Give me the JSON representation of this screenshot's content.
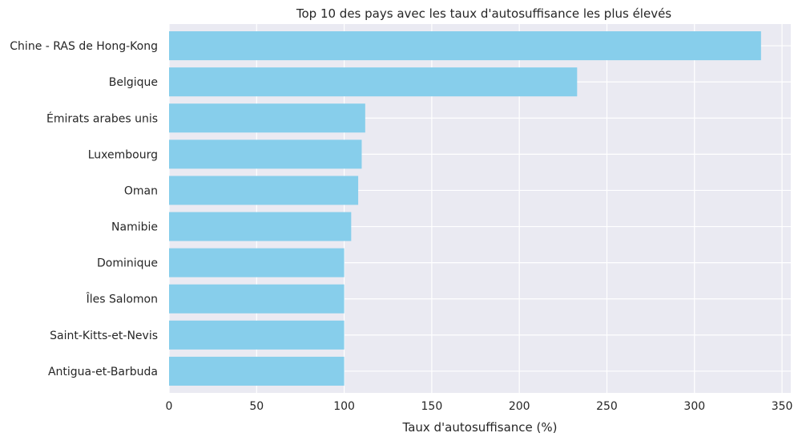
{
  "chart_data": {
    "type": "bar",
    "orientation": "horizontal",
    "title": "Top 10 des pays avec les taux d'autosuffisance les plus élevés",
    "xlabel": "Taux d'autosuffisance (%)",
    "ylabel": "",
    "categories": [
      "Chine - RAS de Hong-Kong",
      "Belgique",
      "Émirats arabes unis",
      "Luxembourg",
      "Oman",
      "Namibie",
      "Dominique",
      "Îles Salomon",
      "Saint-Kitts-et-Nevis",
      "Antigua-et-Barbuda"
    ],
    "values": [
      338,
      233,
      112,
      110,
      108,
      104,
      100,
      100,
      100,
      100
    ],
    "xlim": [
      0,
      355
    ],
    "xticks": [
      0,
      50,
      100,
      150,
      200,
      250,
      300,
      350
    ],
    "grid": true,
    "legend": "none",
    "colors": {
      "bar": "#87CEEB",
      "background": "#EAEAF2",
      "grid": "#FFFFFF",
      "text": "#262626"
    }
  }
}
